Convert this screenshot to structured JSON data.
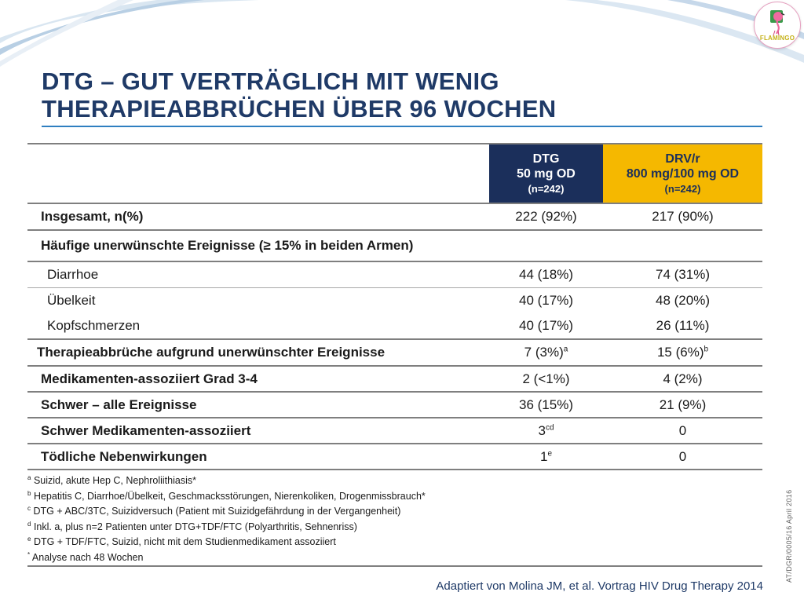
{
  "slide": {
    "title_line1": "DTG – GUT VERTRÄGLICH MIT WENIG",
    "title_line2": "THERAPIEABBRÜCHEN ÜBER 96 WOCHEN",
    "logo_text": "FLAMINGO",
    "source": "Adaptiert von Molina JM, et al. Vortrag HIV Drug Therapy 2014",
    "code": "AT/DGR/0005/16  April 2016",
    "colors": {
      "navy": "#1b2f5b",
      "gold": "#f5b800",
      "title": "#1f3a67",
      "accent": "#2f7fc0"
    }
  },
  "table": {
    "header": {
      "dtg": {
        "line1": "DTG",
        "line2": "50 mg OD",
        "line3": "(n=242)"
      },
      "drv": {
        "line1": "DRV/r",
        "line2": "800 mg/100 mg OD",
        "line3": "(n=242)"
      }
    },
    "rows": [
      {
        "label": "Insgesamt, n(%)",
        "dtg": "222 (92%)",
        "drv": "217 (90%)"
      },
      {
        "label": "Häufige unerwünschte Ereignisse  (≥ 15% in beiden Armen)",
        "dtg": "",
        "drv": ""
      },
      {
        "label": "Diarrhoe",
        "dtg": "44 (18%)",
        "drv": "74 (31%)"
      },
      {
        "label": "Übelkeit",
        "dtg": "40 (17%)",
        "drv": "48 (20%)"
      },
      {
        "label": "Kopfschmerzen",
        "dtg": "40 (17%)",
        "drv": "26 (11%)"
      },
      {
        "label": "Therapieabbrüche aufgrund unerwünschter Ereignisse",
        "dtg": "7 (3%)",
        "dtg_sup": "a",
        "drv": "15 (6%)",
        "drv_sup": "b"
      },
      {
        "label": "Medikamenten-assoziiert Grad 3-4",
        "dtg": "2 (<1%)",
        "drv": "4 (2%)"
      },
      {
        "label": "Schwer – alle Ereignisse",
        "dtg": "36 (15%)",
        "drv": "21 (9%)"
      },
      {
        "label": "Schwer Medikamenten-assoziiert",
        "dtg": "3",
        "dtg_sup": "cd",
        "drv": "0"
      },
      {
        "label": "Tödliche Nebenwirkungen",
        "dtg": "1",
        "dtg_sup": "e",
        "drv": "0"
      }
    ],
    "footnotes": [
      {
        "mark": "a",
        "text": "Suizid, akute Hep C, Nephroliithiasis*"
      },
      {
        "mark": "b",
        "text": "Hepatitis C, Diarrhoe/Übelkeit, Geschmacksstörungen, Nierenkoliken, Drogenmissbrauch*"
      },
      {
        "mark": "c",
        "text": "DTG + ABC/3TC, Suizidversuch (Patient mit Suizidgefährdung in der Vergangenheit)"
      },
      {
        "mark": "d",
        "text": "Inkl. a, plus n=2 Patienten unter  DTG+TDF/FTC (Polyarthritis, Sehnenriss)"
      },
      {
        "mark": "e",
        "text": "DTG + TDF/FTC, Suizid, nicht mit dem Studienmedikament assoziiert"
      },
      {
        "mark": "*",
        "text": "Analyse nach 48 Wochen"
      }
    ]
  }
}
